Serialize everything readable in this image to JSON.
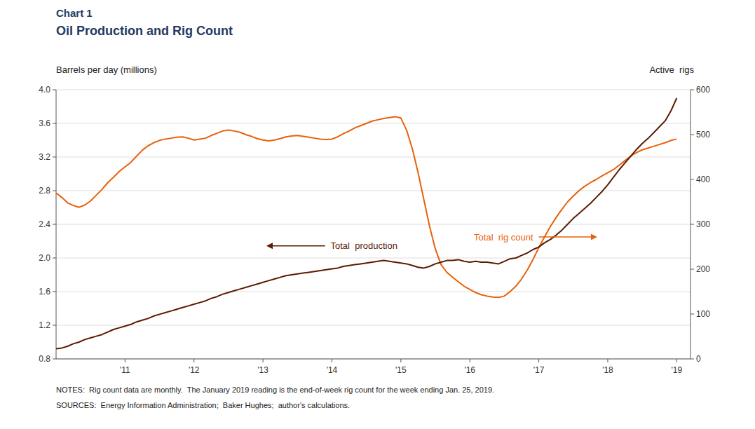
{
  "chart_data": {
    "type": "line",
    "title": "Chart 1",
    "subtitle": "Oil Production and Rig Count",
    "ylabel": "Barrels per day (millions)",
    "y2label": "Active  rigs",
    "notes": "NOTES:  Rig count data are monthly.  The January 2019 reading is the end-of-week rig count for the week ending Jan. 25, 2019.",
    "sources": "SOURCES:  Energy Information Administration;  Baker Hughes;  author's calculations.",
    "grid": true,
    "xlim": [
      2010.0,
      2019.2
    ],
    "xticks": [
      {
        "value": 2011,
        "label": "'11"
      },
      {
        "value": 2012,
        "label": "'12"
      },
      {
        "value": 2013,
        "label": "'13"
      },
      {
        "value": 2014,
        "label": "'14"
      },
      {
        "value": 2015,
        "label": "'15"
      },
      {
        "value": 2016,
        "label": "'16"
      },
      {
        "value": 2017,
        "label": "'17"
      },
      {
        "value": 2018,
        "label": "'18"
      },
      {
        "value": 2019,
        "label": "'19"
      }
    ],
    "ylim": [
      0.8,
      4.0
    ],
    "yticks": [
      0.8,
      1.2,
      1.6,
      {
        "value": 2.0,
        "label": "2.0"
      },
      2.4,
      2.8,
      3.2,
      3.6,
      {
        "value": 4.0,
        "label": "4.0"
      }
    ],
    "y2lim": [
      0,
      600
    ],
    "y2ticks": [
      0,
      100,
      200,
      300,
      400,
      500,
      600
    ],
    "x": [
      2010.0,
      2010.083,
      2010.167,
      2010.25,
      2010.333,
      2010.417,
      2010.5,
      2010.583,
      2010.667,
      2010.75,
      2010.833,
      2010.917,
      2011.0,
      2011.083,
      2011.167,
      2011.25,
      2011.333,
      2011.417,
      2011.5,
      2011.583,
      2011.667,
      2011.75,
      2011.833,
      2011.917,
      2012.0,
      2012.083,
      2012.167,
      2012.25,
      2012.333,
      2012.417,
      2012.5,
      2012.583,
      2012.667,
      2012.75,
      2012.833,
      2012.917,
      2013.0,
      2013.083,
      2013.167,
      2013.25,
      2013.333,
      2013.417,
      2013.5,
      2013.583,
      2013.667,
      2013.75,
      2013.833,
      2013.917,
      2014.0,
      2014.083,
      2014.167,
      2014.25,
      2014.333,
      2014.417,
      2014.5,
      2014.583,
      2014.667,
      2014.75,
      2014.833,
      2014.917,
      2015.0,
      2015.083,
      2015.167,
      2015.25,
      2015.333,
      2015.417,
      2015.5,
      2015.583,
      2015.667,
      2015.75,
      2015.833,
      2015.917,
      2016.0,
      2016.083,
      2016.167,
      2016.25,
      2016.333,
      2016.417,
      2016.5,
      2016.583,
      2016.667,
      2016.75,
      2016.833,
      2016.917,
      2017.0,
      2017.083,
      2017.167,
      2017.25,
      2017.333,
      2017.417,
      2017.5,
      2017.583,
      2017.667,
      2017.75,
      2017.833,
      2017.917,
      2018.0,
      2018.083,
      2018.167,
      2018.25,
      2018.333,
      2018.417,
      2018.5,
      2018.583,
      2018.667,
      2018.75,
      2018.833,
      2018.917,
      2019.0
    ],
    "series": [
      {
        "name": "Total  production",
        "color": "#5C1A00",
        "values": [
          0.92,
          0.93,
          0.95,
          0.98,
          1.0,
          1.03,
          1.05,
          1.07,
          1.09,
          1.12,
          1.15,
          1.17,
          1.19,
          1.21,
          1.24,
          1.26,
          1.28,
          1.31,
          1.33,
          1.35,
          1.37,
          1.39,
          1.41,
          1.43,
          1.45,
          1.47,
          1.49,
          1.52,
          1.54,
          1.57,
          1.59,
          1.61,
          1.63,
          1.65,
          1.67,
          1.69,
          1.71,
          1.73,
          1.75,
          1.77,
          1.79,
          1.8,
          1.81,
          1.82,
          1.83,
          1.84,
          1.85,
          1.86,
          1.87,
          1.88,
          1.9,
          1.91,
          1.92,
          1.93,
          1.94,
          1.95,
          1.96,
          1.97,
          1.96,
          1.95,
          1.94,
          1.93,
          1.91,
          1.89,
          1.88,
          1.9,
          1.93,
          1.95,
          1.97,
          1.97,
          1.98,
          1.96,
          1.95,
          1.96,
          1.95,
          1.95,
          1.94,
          1.93,
          1.96,
          1.99,
          2.0,
          2.03,
          2.06,
          2.1,
          2.13,
          2.18,
          2.22,
          2.27,
          2.33,
          2.4,
          2.47,
          2.53,
          2.59,
          2.65,
          2.72,
          2.79,
          2.87,
          2.96,
          3.05,
          3.13,
          3.21,
          3.29,
          3.36,
          3.42,
          3.49,
          3.56,
          3.63,
          3.75,
          3.9
        ]
      },
      {
        "name": "Total  rig count",
        "color": "#E8610A",
        "axis": "y2",
        "values": [
          370,
          360,
          348,
          342,
          338,
          343,
          352,
          365,
          378,
          393,
          405,
          418,
          428,
          438,
          452,
          465,
          475,
          482,
          487,
          490,
          492,
          494,
          495,
          492,
          488,
          490,
          492,
          498,
          503,
          508,
          510,
          508,
          505,
          500,
          496,
          491,
          488,
          486,
          488,
          491,
          495,
          497,
          498,
          496,
          494,
          492,
          490,
          489,
          490,
          495,
          502,
          508,
          515,
          520,
          525,
          530,
          533,
          536,
          538,
          540,
          537,
          510,
          468,
          415,
          355,
          295,
          245,
          210,
          193,
          182,
          172,
          162,
          155,
          148,
          143,
          140,
          138,
          137,
          140,
          150,
          162,
          178,
          198,
          222,
          248,
          272,
          295,
          315,
          333,
          350,
          363,
          375,
          385,
          393,
          400,
          408,
          415,
          422,
          432,
          442,
          452,
          460,
          466,
          470,
          474,
          478,
          482,
          487,
          490
        ]
      }
    ]
  }
}
